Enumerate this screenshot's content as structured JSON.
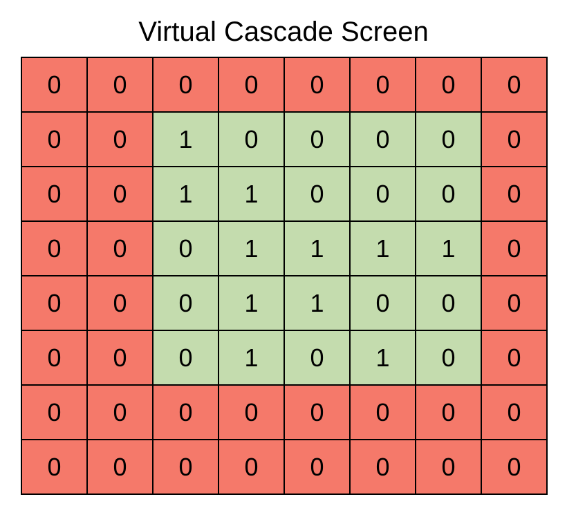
{
  "title": "Virtual Cascade Screen",
  "colors": {
    "border": "#f5796a",
    "interior": "#c4dcae",
    "grid_line": "#000000"
  },
  "grid": {
    "rows": [
      [
        0,
        0,
        0,
        0,
        0,
        0,
        0,
        0
      ],
      [
        0,
        0,
        1,
        0,
        0,
        0,
        0,
        0
      ],
      [
        0,
        0,
        1,
        1,
        0,
        0,
        0,
        0
      ],
      [
        0,
        0,
        0,
        1,
        1,
        1,
        1,
        0
      ],
      [
        0,
        0,
        0,
        1,
        1,
        0,
        0,
        0
      ],
      [
        0,
        0,
        0,
        1,
        0,
        1,
        0,
        0
      ],
      [
        0,
        0,
        0,
        0,
        0,
        0,
        0,
        0
      ],
      [
        0,
        0,
        0,
        0,
        0,
        0,
        0,
        0
      ]
    ],
    "regions": [
      [
        "border",
        "border",
        "border",
        "border",
        "border",
        "border",
        "border",
        "border"
      ],
      [
        "border",
        "border",
        "interior",
        "interior",
        "interior",
        "interior",
        "interior",
        "border"
      ],
      [
        "border",
        "border",
        "interior",
        "interior",
        "interior",
        "interior",
        "interior",
        "border"
      ],
      [
        "border",
        "border",
        "interior",
        "interior",
        "interior",
        "interior",
        "interior",
        "border"
      ],
      [
        "border",
        "border",
        "interior",
        "interior",
        "interior",
        "interior",
        "interior",
        "border"
      ],
      [
        "border",
        "border",
        "interior",
        "interior",
        "interior",
        "interior",
        "interior",
        "border"
      ],
      [
        "border",
        "border",
        "border",
        "border",
        "border",
        "border",
        "border",
        "border"
      ],
      [
        "border",
        "border",
        "border",
        "border",
        "border",
        "border",
        "border",
        "border"
      ]
    ]
  }
}
